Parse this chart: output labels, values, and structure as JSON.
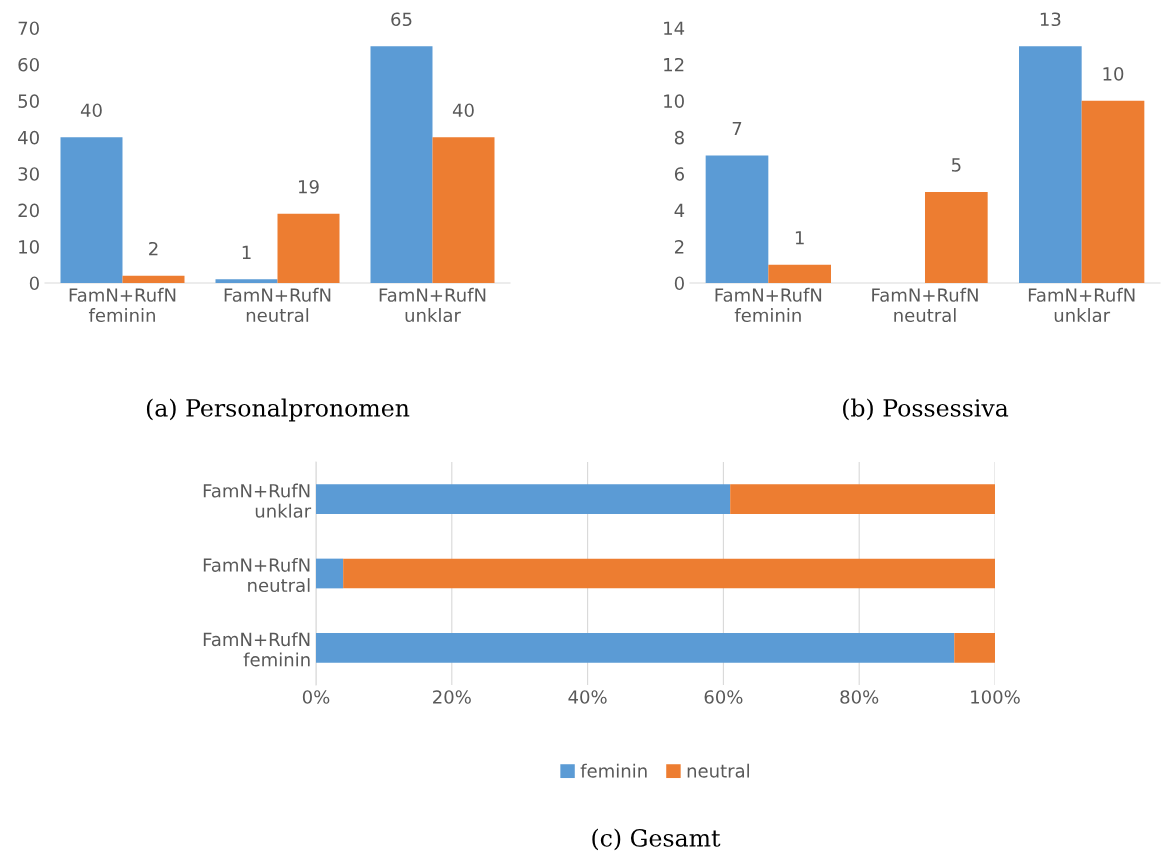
{
  "chart_data": [
    {
      "type": "bar",
      "annotations": [
        "(a) Personalpronomen"
      ],
      "categories": [
        "FamN+RufN\nfeminin",
        "FamN+RufN\nneutral",
        "FamN+RufN\nunklar"
      ],
      "series": [
        {
          "color": "#5b9bd5",
          "values": [
            40,
            1,
            65
          ]
        },
        {
          "color": "#ed7d31",
          "values": [
            2,
            19,
            40
          ]
        }
      ],
      "ylim": [
        0,
        70
      ],
      "yticks": [
        0,
        10,
        20,
        30,
        40,
        50,
        60,
        70
      ],
      "data_labels": true,
      "grid": false,
      "legend": false
    },
    {
      "type": "bar",
      "annotations": [
        "(b) Possessiva"
      ],
      "categories": [
        "FamN+RufN\nfeminin",
        "FamN+RufN\nneutral",
        "FamN+RufN\nunklar"
      ],
      "series": [
        {
          "color": "#5b9bd5",
          "values": [
            7,
            0,
            13
          ],
          "value_labels": [
            "7",
            null,
            "13"
          ]
        },
        {
          "color": "#ed7d31",
          "values": [
            1,
            5,
            10
          ],
          "value_labels": [
            "1",
            "5",
            "10"
          ]
        }
      ],
      "ylim": [
        0,
        14
      ],
      "yticks": [
        0,
        2,
        4,
        6,
        8,
        10,
        12,
        14
      ],
      "grid": false,
      "legend": false
    },
    {
      "type": "bar",
      "orientation": "horizontal",
      "stacked": true,
      "annotations": [
        "(c) Gesamt"
      ],
      "categories": [
        "FamN+RufN\nunklar",
        "FamN+RufN\nneutral",
        "FamN+RufN\nfeminin"
      ],
      "series": [
        {
          "name": "feminin",
          "color": "#5b9bd5",
          "values": [
            61,
            4,
            94
          ]
        },
        {
          "name": "neutral",
          "color": "#ed7d31",
          "values": [
            39,
            96,
            6
          ]
        }
      ],
      "xlim": [
        0,
        100
      ],
      "xticks": [
        {
          "value": 0,
          "label": "0%"
        },
        {
          "value": 20,
          "label": "20%"
        },
        {
          "value": 40,
          "label": "40%"
        },
        {
          "value": 60,
          "label": "60%"
        },
        {
          "value": 80,
          "label": "80%"
        },
        {
          "value": 100,
          "label": "100%"
        }
      ],
      "grid": "x",
      "legend": "bottom"
    }
  ]
}
